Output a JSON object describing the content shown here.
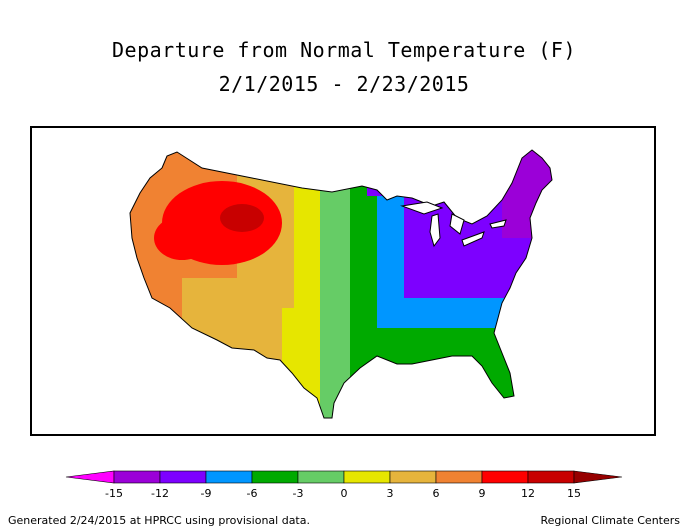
{
  "title": {
    "line1": "Departure from Normal Temperature (F)",
    "line2": "2/1/2015 - 2/23/2015"
  },
  "legend": {
    "bins": [
      {
        "color": "#ff00ff"
      },
      {
        "color": "#9b00d8"
      },
      {
        "color": "#7d00ff"
      },
      {
        "color": "#0096ff"
      },
      {
        "color": "#00aa00"
      },
      {
        "color": "#66cc66"
      },
      {
        "color": "#e6e600"
      },
      {
        "color": "#e6b43c"
      },
      {
        "color": "#f08232"
      },
      {
        "color": "#ff0000"
      },
      {
        "color": "#c80000"
      },
      {
        "color": "#960000"
      }
    ],
    "ticks": [
      "-15",
      "-12",
      "-9",
      "-6",
      "-3",
      "0",
      "3",
      "6",
      "9",
      "12",
      "15"
    ]
  },
  "footer": {
    "left": "Generated 2/24/2015 at HPRCC using provisional data.",
    "right": "Regional Climate Centers"
  }
}
